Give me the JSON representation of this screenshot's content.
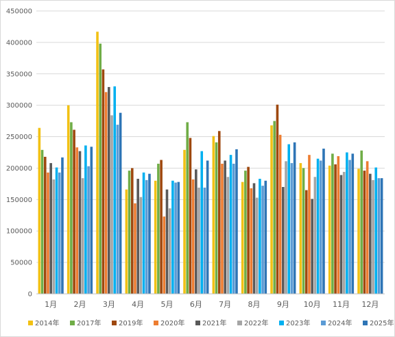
{
  "chart_data": {
    "type": "bar",
    "title": "",
    "xlabel": "",
    "ylabel": "",
    "ylim": [
      0,
      450000
    ],
    "yticks": [
      0,
      50000,
      100000,
      150000,
      200000,
      250000,
      300000,
      350000,
      400000,
      450000
    ],
    "grid": "horizontal",
    "legend_position": "bottom",
    "categories": [
      "1月",
      "2月",
      "3月",
      "4月",
      "5月",
      "6月",
      "7月",
      "8月",
      "9月",
      "10月",
      "11月",
      "12月"
    ],
    "series": [
      {
        "name": "2014年",
        "color": "#F2C114",
        "values": [
          264000,
          300000,
          417000,
          166000,
          180000,
          229000,
          251000,
          178000,
          268000,
          208000,
          204000,
          199000
        ]
      },
      {
        "name": "2017年",
        "color": "#70AD47",
        "values": [
          229000,
          273000,
          398000,
          196000,
          207000,
          273000,
          241000,
          196000,
          275000,
          200000,
          223000,
          228000
        ]
      },
      {
        "name": "2019年",
        "color": "#9E480E",
        "values": [
          218000,
          261000,
          357000,
          200000,
          213000,
          248000,
          259000,
          202000,
          301000,
          165000,
          206000,
          196000
        ]
      },
      {
        "name": "2020年",
        "color": "#ED7D31",
        "values": [
          193000,
          233000,
          321000,
          144000,
          123000,
          182000,
          207000,
          168000,
          253000,
          221000,
          219000,
          211000
        ]
      },
      {
        "name": "2021年",
        "color": "#595959",
        "values": [
          208000,
          227000,
          329000,
          183000,
          166000,
          198000,
          212000,
          176000,
          170000,
          151000,
          189000,
          191000
        ]
      },
      {
        "name": "2022年",
        "color": "#A5A5A5",
        "values": [
          182000,
          184000,
          284000,
          154000,
          136000,
          169000,
          186000,
          153000,
          211000,
          186000,
          194000,
          181000
        ]
      },
      {
        "name": "2023年",
        "color": "#00B0F0",
        "values": [
          201000,
          236000,
          330000,
          193000,
          180000,
          227000,
          221000,
          183000,
          238000,
          215000,
          225000,
          201000
        ]
      },
      {
        "name": "2024年",
        "color": "#5B9BD5",
        "values": [
          193000,
          203000,
          269000,
          181000,
          177000,
          169000,
          207000,
          172000,
          208000,
          212000,
          213000,
          184000
        ]
      },
      {
        "name": "2025年",
        "color": "#2E75B6",
        "values": [
          217000,
          234000,
          288000,
          191000,
          178000,
          212000,
          230000,
          180000,
          241000,
          231000,
          223000,
          184000
        ]
      }
    ]
  }
}
